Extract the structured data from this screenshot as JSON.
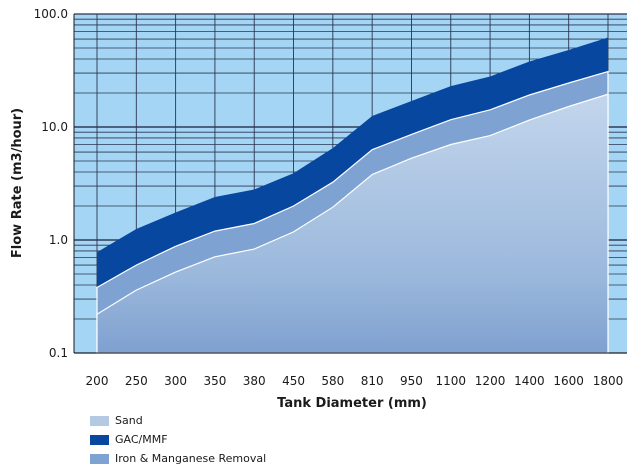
{
  "chart_data": {
    "type": "area",
    "xlabel": "Tank Diameter (mm)",
    "ylabel": "Flow Rate (m3/hour)",
    "y_scale": "log",
    "ylim": [
      0.1,
      100
    ],
    "y_ticks": [
      {
        "value": 0.1,
        "label": "0.1"
      },
      {
        "value": 1,
        "label": "1.0"
      },
      {
        "value": 10,
        "label": "10.0"
      },
      {
        "value": 100,
        "label": "100.0"
      }
    ],
    "categories": [
      "200",
      "250",
      "300",
      "350",
      "380",
      "450",
      "580",
      "810",
      "950",
      "1100",
      "1200",
      "1400",
      "1600",
      "1800"
    ],
    "series": [
      {
        "name": "Sand",
        "color": "#b4cae3",
        "values": [
          0.22,
          0.36,
          0.52,
          0.71,
          0.83,
          1.18,
          1.95,
          3.8,
          5.3,
          7.0,
          8.4,
          11.5,
          15.2,
          19.5
        ]
      },
      {
        "name": "GAC/MMF",
        "color": "#0747a0",
        "values": [
          0.78,
          1.25,
          1.75,
          2.4,
          2.8,
          3.9,
          6.5,
          12.5,
          17.0,
          23.0,
          28.0,
          38.0,
          48.0,
          62.0
        ]
      },
      {
        "name": "Iron & Manganese Removal",
        "color": "#7ea3d3",
        "values": [
          0.38,
          0.6,
          0.88,
          1.2,
          1.4,
          2.0,
          3.25,
          6.3,
          8.6,
          11.6,
          14.2,
          19.2,
          24.5,
          31.0
        ]
      }
    ],
    "legend_position": "bottom-left",
    "grid": true
  }
}
